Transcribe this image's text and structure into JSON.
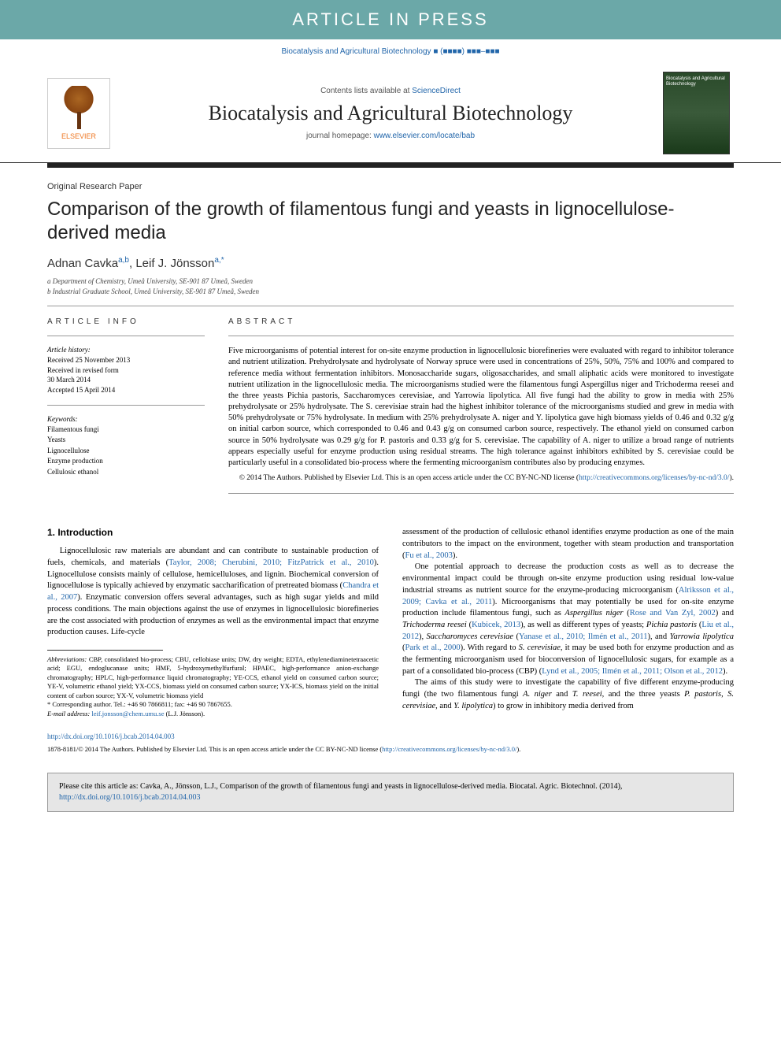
{
  "banner": {
    "text": "ARTICLE IN PRESS"
  },
  "journal_ref": "Biocatalysis and Agricultural Biotechnology ■ (■■■■) ■■■–■■■",
  "masthead": {
    "contents_prefix": "Contents lists available at ",
    "contents_link_text": "ScienceDirect",
    "journal_name": "Biocatalysis and Agricultural Biotechnology",
    "homepage_prefix": "journal homepage: ",
    "homepage_url_text": "www.elsevier.com/locate/bab",
    "elsevier_label": "ELSEVIER",
    "cover_label": "Biocatalysis and Agricultural Biotechnology"
  },
  "article": {
    "type": "Original Research Paper",
    "title": "Comparison of the growth of filamentous fungi and yeasts in lignocellulose-derived media",
    "authors_html": "Adnan Cavka",
    "author1_sup": "a,b",
    "author2": "Leif J. Jönsson",
    "author2_sup": "a,*",
    "aff_a": "a Department of Chemistry, Umeå University, SE-901 87 Umeå, Sweden",
    "aff_b": "b Industrial Graduate School, Umeå University, SE-901 87 Umeå, Sweden"
  },
  "info": {
    "heading": "ARTICLE INFO",
    "history_label": "Article history:",
    "history_text": "Received 25 November 2013\nReceived in revised form\n30 March 2014\nAccepted 15 April 2014",
    "keywords_label": "Keywords:",
    "keywords": [
      "Filamentous fungi",
      "Yeasts",
      "Lignocellulose",
      "Enzyme production",
      "Cellulosic ethanol"
    ]
  },
  "abstract": {
    "heading": "ABSTRACT",
    "text": "Five microorganisms of potential interest for on-site enzyme production in lignocellulosic biorefineries were evaluated with regard to inhibitor tolerance and nutrient utilization. Prehydrolysate and hydrolysate of Norway spruce were used in concentrations of 25%, 50%, 75% and 100% and compared to reference media without fermentation inhibitors. Monosaccharide sugars, oligosaccharides, and small aliphatic acids were monitored to investigate nutrient utilization in the lignocellulosic media. The microorganisms studied were the filamentous fungi Aspergillus niger and Trichoderma reesei and the three yeasts Pichia pastoris, Saccharomyces cerevisiae, and Yarrowia lipolytica. All five fungi had the ability to grow in media with 25% prehydrolysate or 25% hydrolysate. The S. cerevisiae strain had the highest inhibitor tolerance of the microorganisms studied and grew in media with 50% prehydrolysate or 75% hydrolysate. In medium with 25% prehydrolysate A. niger and Y. lipolytica gave high biomass yields of 0.46 and 0.32 g/g on initial carbon source, which corresponded to 0.46 and 0.43 g/g on consumed carbon source, respectively. The ethanol yield on consumed carbon source in 50% hydrolysate was 0.29 g/g for P. pastoris and 0.33 g/g for S. cerevisiae. The capability of A. niger to utilize a broad range of nutrients appears especially useful for enzyme production using residual streams. The high tolerance against inhibitors exhibited by S. cerevisiae could be particularly useful in a consolidated bio-process where the fermenting microorganism contributes also by producing enzymes.",
    "copyright": "© 2014 The Authors. Published by Elsevier Ltd. This is an open access article under the CC BY-NC-ND license (",
    "license_url_text": "http://creativecommons.org/licenses/by-nc-nd/3.0/",
    "copyright_suffix": ")."
  },
  "body": {
    "section1_heading": "1. Introduction",
    "para1": "Lignocellulosic raw materials are abundant and can contribute to sustainable production of fuels, chemicals, and materials (",
    "para1_ref1": "Taylor, 2008; Cherubini, 2010; FitzPatrick et al., 2010",
    "para1b": "). Lignocellulose consists mainly of cellulose, hemicelluloses, and lignin. Biochemical conversion of lignocellulose is typically achieved by enzymatic saccharification of pretreated biomass (",
    "para1_ref2": "Chandra et al., 2007",
    "para1c": "). Enzymatic conversion offers several advantages, such as high sugar yields and mild process conditions. The main objections against the use of enzymes in lignocellulosic biorefineries are the cost associated with production of enzymes as well as the environmental impact that enzyme production causes. Life-cycle ",
    "para2a": "assessment of the production of cellulosic ethanol identifies enzyme production as one of the main contributors to the impact on the environment, together with steam production and transportation (",
    "para2_ref1": "Fu et al., 2003",
    "para2b": ").",
    "para3a": "One potential approach to decrease the production costs as well as to decrease the environmental impact could be through on-site enzyme production using residual low-value industrial streams as nutrient source for the enzyme-producing microorganism (",
    "para3_ref1": "Alriksson et al., 2009; Cavka et al., 2011",
    "para3b": "). Microorganisms that may potentially be used for on-site enzyme production include filamentous fungi, such as ",
    "para3_sp1": "Aspergillus niger",
    "para3c": " (",
    "para3_ref2": "Rose and Van Zyl, 2002",
    "para3d": ") and ",
    "para3_sp2": "Trichoderma reesei",
    "para3e": " (",
    "para3_ref3": "Kubicek, 2013",
    "para3f": "), as well as different types of yeasts; ",
    "para3_sp3": "Pichia pastoris",
    "para3g": " (",
    "para3_ref4": "Liu et al., 2012",
    "para3h": "), ",
    "para3_sp4": "Saccharomyces cerevisiae",
    "para3i": " (",
    "para3_ref5": "Yanase et al., 2010; Ilmén et al., 2011",
    "para3j": "), and ",
    "para3_sp5": "Yarrowia lipolytica",
    "para3k": " (",
    "para3_ref6": "Park et al., 2000",
    "para3l": "). With regard to ",
    "para3_sp6": "S. cerevisiae",
    "para3m": ", it may be used both for enzyme production and as the fermenting microorganism used for bioconversion of lignocellulosic sugars, for example as a part of a consolidated bio-process (CBP) (",
    "para3_ref7": "Lynd et al., 2005; Ilmén et al., 2011; Olson et al., 2012",
    "para3n": ").",
    "para4a": "The aims of this study were to investigate the capability of five different enzyme-producing fungi (the two filamentous fungi ",
    "para4_sp1": "A. niger",
    "para4b": " and ",
    "para4_sp2": "T. reesei",
    "para4c": ", and the three yeasts ",
    "para4_sp3": "P. pastoris",
    "para4d": ", ",
    "para4_sp4": "S. cerevisiae",
    "para4e": ", and ",
    "para4_sp5": "Y. lipolytica",
    "para4f": ") to grow in inhibitory media derived from"
  },
  "footnotes": {
    "abbrev_label": "Abbreviations:",
    "abbrev_text": " CBP, consolidated bio-process; CBU, cellobiase units; DW, dry weight; EDTA, ethylenediaminetetraacetic acid; EGU, endoglucanase units; HMF, 5-hydroxymethylfurfural; HPAEC, high-performance anion-exchange chromatography; HPLC, high-performance liquid chromatography; YE-CCS, ethanol yield on consumed carbon source; YE-V, volumetric ethanol yield; YX-CCS, biomass yield on consumed carbon source; YX-ICS, biomass yield on the initial content of carbon source; YX-V, volumetric biomass yield",
    "corr_label": "* Corresponding author. Tel.: +46 90 7866811; fax: +46 90 7867655.",
    "email_label": "E-mail address: ",
    "email": "leif.jonsson@chem.umu.se",
    "email_suffix": " (L.J. Jönsson)."
  },
  "doi": {
    "url_text": "http://dx.doi.org/10.1016/j.bcab.2014.04.003"
  },
  "license_line": {
    "text": "1878-8181/© 2014 The Authors. Published by Elsevier Ltd. This is an open access article under the CC BY-NC-ND license (",
    "url_text": "http://creativecommons.org/licenses/by-nc-nd/3.0/",
    "suffix": ")."
  },
  "cite_box": {
    "prefix": "Please cite this article as: Cavka, A., Jönsson, L.J., Comparison of the growth of filamentous fungi and yeasts in lignocellulose-derived media. Biocatal. Agric. Biotechnol. (2014), ",
    "url_text": "http://dx.doi.org/10.1016/j.bcab.2014.04.003"
  },
  "colors": {
    "banner_bg": "#6ba8a8",
    "link": "#2266aa",
    "elsevier_orange": "#ee7722"
  }
}
